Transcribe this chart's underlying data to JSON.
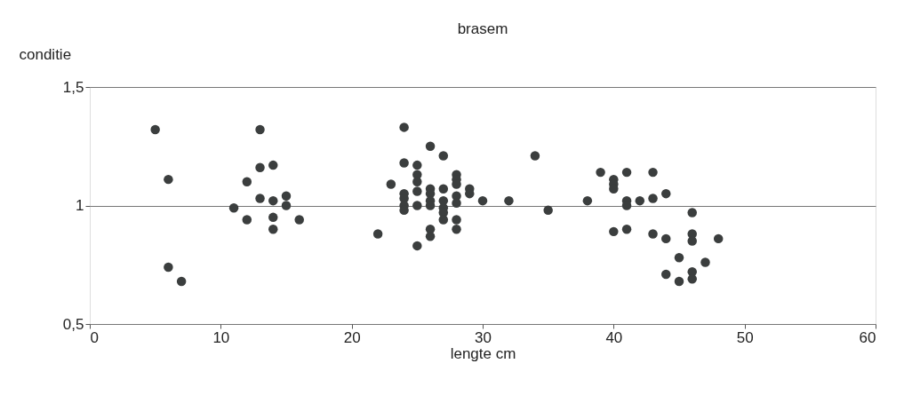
{
  "chart_data": {
    "type": "scatter",
    "title": "brasem",
    "xlabel": "lengte cm",
    "ylabel": "conditie",
    "x": [
      5,
      6,
      6,
      7,
      11,
      12,
      12,
      13,
      13,
      14,
      13,
      14,
      15,
      15,
      14,
      14,
      16,
      24,
      26,
      27,
      24,
      25,
      23,
      22,
      25,
      26,
      26,
      24,
      24,
      24,
      24,
      25,
      25,
      25,
      25,
      26,
      26,
      26,
      26,
      27,
      27,
      27,
      27,
      27,
      28,
      28,
      28,
      28,
      28,
      28,
      28,
      29,
      29,
      30,
      32,
      34,
      35,
      38,
      39,
      40,
      40,
      40,
      40,
      41,
      41,
      41,
      41,
      42,
      43,
      43,
      43,
      44,
      44,
      45,
      45,
      44,
      46,
      46,
      46,
      46,
      46,
      47,
      48
    ],
    "series": [
      {
        "color": "#3b3e3e",
        "values": [
          1.32,
          1.11,
          0.74,
          0.68,
          0.99,
          1.1,
          0.94,
          1.32,
          1.16,
          1.17,
          1.03,
          1.02,
          1.04,
          1.0,
          0.95,
          0.9,
          0.94,
          1.33,
          1.25,
          1.21,
          1.18,
          1.17,
          1.09,
          0.88,
          0.83,
          0.9,
          0.87,
          1.05,
          1.03,
          1.0,
          0.98,
          1.13,
          1.1,
          1.06,
          1.0,
          1.07,
          1.05,
          1.02,
          1.0,
          1.07,
          1.02,
          0.99,
          0.97,
          0.94,
          1.13,
          1.11,
          1.09,
          1.04,
          1.01,
          0.94,
          0.9,
          1.07,
          1.05,
          1.02,
          1.02,
          1.21,
          0.98,
          1.02,
          1.14,
          1.11,
          1.09,
          1.07,
          0.89,
          1.14,
          1.02,
          1.0,
          0.9,
          1.02,
          1.14,
          1.03,
          0.88,
          1.05,
          0.86,
          0.78,
          0.68,
          0.71,
          0.97,
          0.88,
          0.85,
          0.72,
          0.69,
          0.76,
          0.86
        ]
      }
    ],
    "xlim": [
      0,
      60
    ],
    "xticks": [
      0,
      10,
      20,
      30,
      40,
      50,
      60
    ],
    "ylim": [
      0.5,
      1.5
    ],
    "yticks": [
      {
        "value": 0.5,
        "label": "0,5"
      },
      1,
      {
        "value": 1.5,
        "label": "1,5"
      }
    ],
    "grid": "y",
    "marker": "circle"
  }
}
